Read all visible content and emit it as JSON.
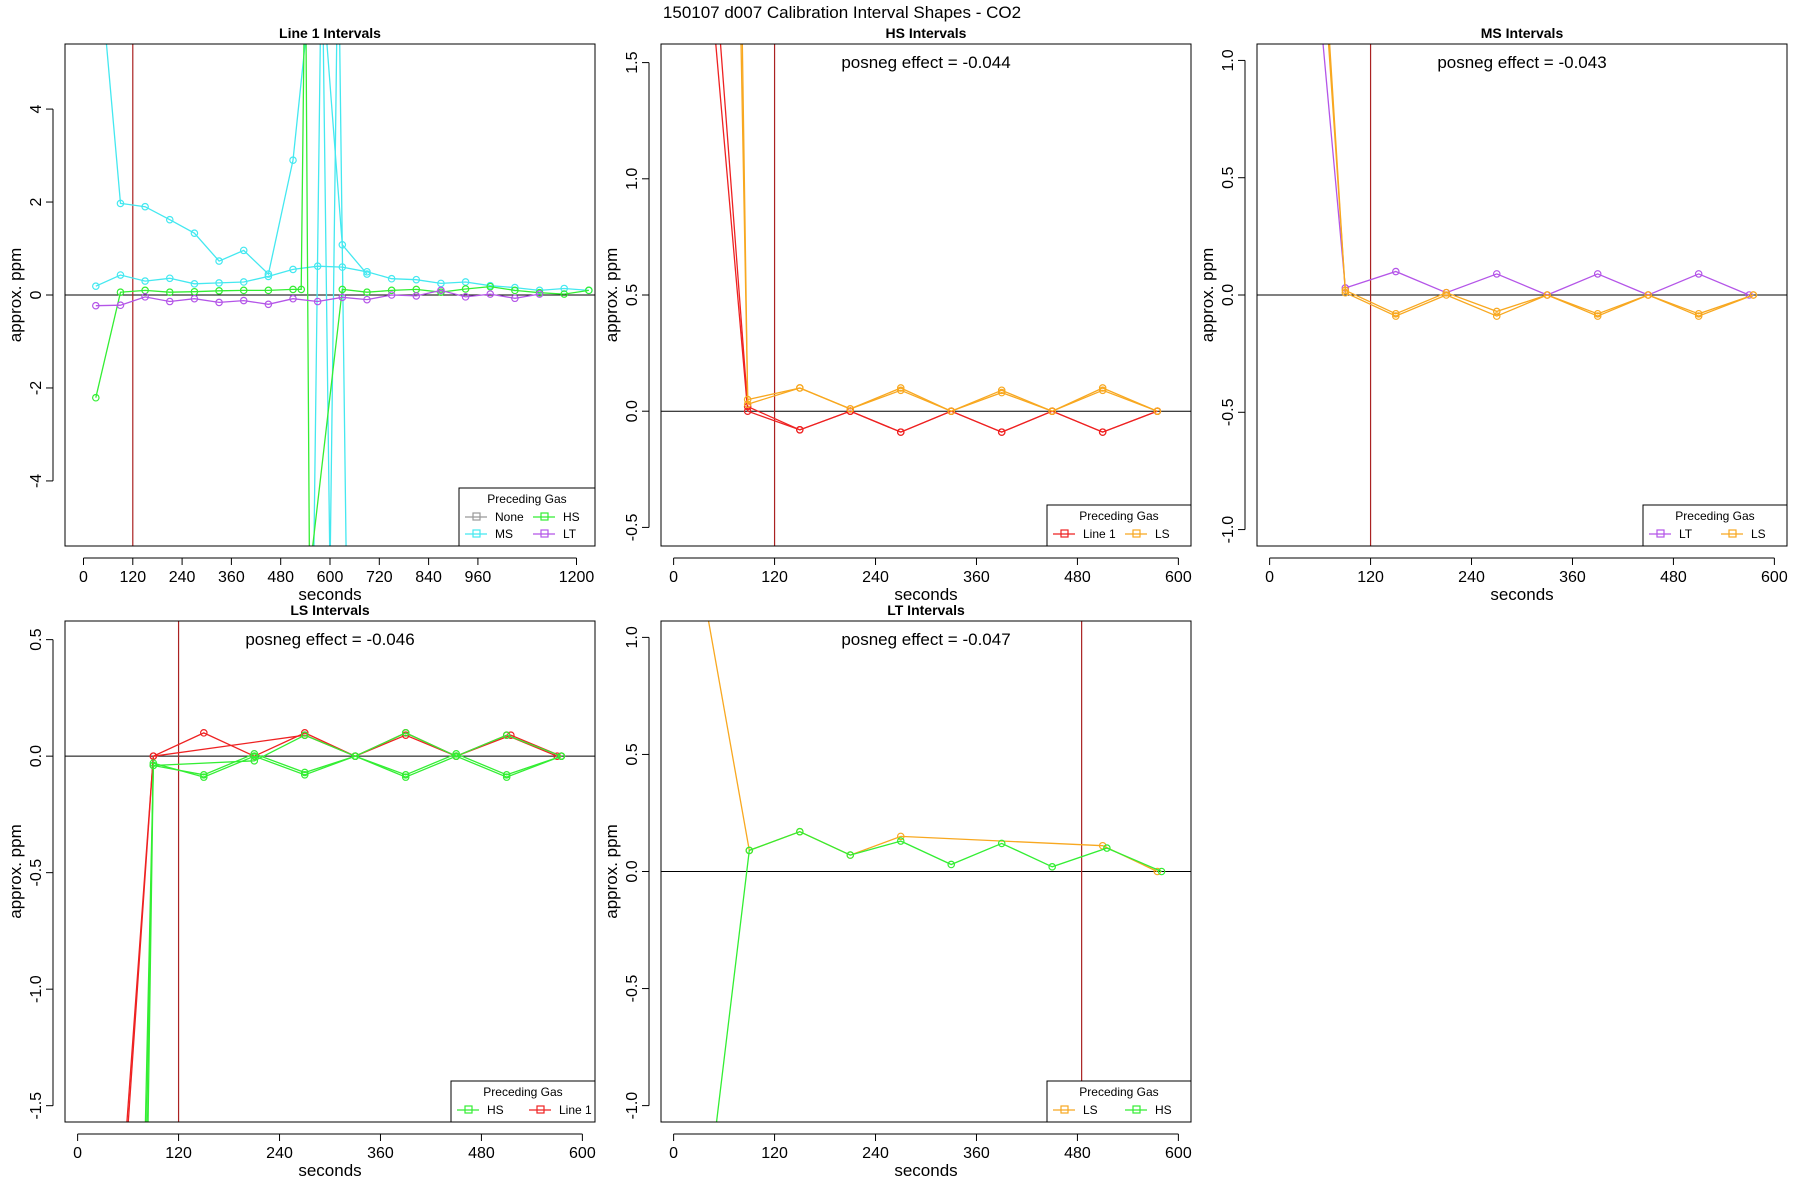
{
  "figure": {
    "title": "150107  d007   Calibration Interval Shapes - CO2"
  },
  "colors": {
    "None": "#999999",
    "HS": "#33ee33",
    "MS": "#44e8f0",
    "LT": "#b455e8",
    "Line 1": "#ee2222",
    "LS": "#f8a820",
    "vline": "#aa2222",
    "zero": "#000000"
  },
  "chart_data": [
    {
      "id": "line1",
      "type": "line",
      "title": "Line 1 Intervals",
      "annotation": "",
      "xlabel": "seconds",
      "ylabel": "approx. ppm",
      "xlim": [
        -45,
        1245
      ],
      "ylim": [
        -5.4,
        5.4
      ],
      "xticks": [
        0,
        120,
        240,
        360,
        480,
        600,
        720,
        840,
        960,
        1200
      ],
      "yticks": [
        -4,
        -2,
        0,
        2,
        4
      ],
      "vlines": [
        120
      ],
      "legend": {
        "title": "Preceding Gas",
        "position": "bottom-right",
        "columns": 2,
        "entries": [
          "None",
          "HS",
          "MS",
          "LT"
        ]
      },
      "series": [
        {
          "name": "MS",
          "x": [
            30,
            90,
            150,
            210,
            270,
            330,
            390,
            450,
            510,
            570,
            630,
            690
          ],
          "y": [
            8,
            1.97,
            1.9,
            1.62,
            1.33,
            0.73,
            0.96,
            0.45,
            2.9,
            8,
            1.08,
            0.45
          ]
        },
        {
          "name": "MS",
          "x": [
            560,
            580,
            600,
            620,
            640
          ],
          "y": [
            -6,
            8,
            -6,
            8,
            -6
          ]
        },
        {
          "name": "MS",
          "x": [
            30,
            90,
            150,
            210,
            270,
            330,
            390,
            450,
            510,
            570,
            630,
            690,
            750,
            810,
            870,
            930,
            990,
            1050,
            1110,
            1170,
            1230
          ],
          "y": [
            0.19,
            0.43,
            0.3,
            0.36,
            0.24,
            0.26,
            0.28,
            0.4,
            0.55,
            0.62,
            0.6,
            0.5,
            0.35,
            0.33,
            0.25,
            0.28,
            0.2,
            0.16,
            0.1,
            0.14,
            0.1
          ]
        },
        {
          "name": "HS",
          "x": [
            30,
            90,
            150,
            210,
            270,
            330,
            390,
            450,
            510,
            530,
            540,
            550,
            630,
            690,
            750,
            810,
            870,
            930,
            990,
            1050,
            1110,
            1170,
            1230
          ],
          "y": [
            -2.21,
            0.06,
            0.1,
            0.06,
            0.07,
            0.09,
            0.1,
            0.1,
            0.12,
            0.12,
            8,
            -6,
            0.12,
            0.06,
            0.1,
            0.12,
            0.06,
            0.13,
            0.18,
            0.1,
            0.05,
            0.02,
            0.1
          ]
        },
        {
          "name": "LT",
          "x": [
            30,
            90,
            150,
            210,
            270,
            330,
            390,
            450,
            510,
            570,
            630,
            690,
            750,
            810,
            870,
            930,
            990,
            1050,
            1110
          ],
          "y": [
            -0.23,
            -0.22,
            -0.04,
            -0.14,
            -0.08,
            -0.16,
            -0.12,
            -0.2,
            -0.08,
            -0.14,
            -0.05,
            -0.1,
            0.0,
            -0.02,
            0.1,
            -0.04,
            0.02,
            -0.07,
            0.02
          ]
        }
      ]
    },
    {
      "id": "hs",
      "type": "line",
      "title": "HS Intervals",
      "annotation": "posneg effect = -0.044",
      "xlabel": "seconds",
      "ylabel": "approx. ppm",
      "xlim": [
        -15,
        615
      ],
      "ylim": [
        -0.58,
        1.58
      ],
      "xticks": [
        0,
        120,
        240,
        360,
        480,
        600
      ],
      "yticks": [
        -0.5,
        0.0,
        0.5,
        1.0,
        1.5
      ],
      "vlines": [
        120
      ],
      "legend": {
        "title": "Preceding Gas",
        "position": "bottom-right",
        "columns": 2,
        "entries": [
          "Line 1",
          "LS"
        ]
      },
      "series": [
        {
          "name": "Line 1",
          "x": [
            40,
            88,
            150,
            210,
            270,
            330,
            390,
            450,
            510,
            575
          ],
          "y": [
            2.0,
            0.0,
            -0.08,
            0.0,
            -0.09,
            0.0,
            -0.09,
            0.0,
            -0.09,
            0.0
          ]
        },
        {
          "name": "Line 1",
          "x": [
            47,
            88,
            150,
            210,
            270,
            330,
            390,
            450,
            510,
            575
          ],
          "y": [
            2.0,
            0.02,
            -0.08,
            0.0,
            -0.09,
            0.0,
            -0.09,
            0.0,
            -0.09,
            0.0
          ]
        },
        {
          "name": "LS",
          "x": [
            78,
            88,
            150,
            210,
            270,
            330,
            390,
            450,
            510,
            575
          ],
          "y": [
            2.0,
            0.05,
            0.1,
            0.01,
            0.09,
            0.0,
            0.08,
            0.0,
            0.09,
            0.0
          ]
        },
        {
          "name": "LS",
          "x": [
            80,
            88,
            150,
            210,
            270,
            330,
            390,
            450,
            510,
            575
          ],
          "y": [
            2.0,
            0.03,
            0.1,
            0.01,
            0.1,
            0.0,
            0.09,
            0.0,
            0.1,
            0.0
          ]
        }
      ]
    },
    {
      "id": "ms",
      "type": "line",
      "title": "MS Intervals",
      "annotation": "posneg effect = -0.043",
      "xlabel": "seconds",
      "ylabel": "approx. ppm",
      "xlim": [
        -15,
        615
      ],
      "ylim": [
        -1.07,
        1.07
      ],
      "xticks": [
        0,
        120,
        240,
        360,
        480,
        600
      ],
      "yticks": [
        -1.0,
        -0.5,
        0.0,
        0.5,
        1.0
      ],
      "vlines": [
        120
      ],
      "legend": {
        "title": "Preceding Gas",
        "position": "bottom-right",
        "columns": 2,
        "entries": [
          "LT",
          "LS"
        ]
      },
      "series": [
        {
          "name": "LT",
          "x": [
            50,
            90,
            150,
            210,
            270,
            330,
            390,
            450,
            510,
            570
          ],
          "y": [
            1.6,
            0.03,
            0.1,
            0.01,
            0.09,
            0.0,
            0.09,
            0.0,
            0.09,
            0.0
          ]
        },
        {
          "name": "LS",
          "x": [
            60,
            90,
            150,
            210,
            270,
            330,
            390,
            450,
            510,
            575
          ],
          "y": [
            1.6,
            0.02,
            -0.08,
            0.01,
            -0.07,
            0.0,
            -0.08,
            0.0,
            -0.08,
            0.0
          ]
        },
        {
          "name": "LS",
          "x": [
            62,
            90,
            150,
            210,
            270,
            330,
            390,
            450,
            510,
            575
          ],
          "y": [
            1.6,
            0.01,
            -0.09,
            0.0,
            -0.09,
            0.0,
            -0.09,
            0.0,
            -0.09,
            0.0
          ]
        }
      ]
    },
    {
      "id": "ls",
      "type": "line",
      "title": "LS Intervals",
      "annotation": "posneg effect = -0.046",
      "xlabel": "seconds",
      "ylabel": "approx. ppm",
      "xlim": [
        -15,
        615
      ],
      "ylim": [
        -1.57,
        0.58
      ],
      "xticks": [
        0,
        120,
        240,
        360,
        480,
        600
      ],
      "yticks": [
        -1.5,
        -1.0,
        -0.5,
        0.0,
        0.5
      ],
      "vlines": [
        120
      ],
      "legend": {
        "title": "Preceding Gas",
        "position": "bottom-right",
        "columns": 2,
        "entries": [
          "HS",
          "Line 1"
        ]
      },
      "series": [
        {
          "name": "Line 1",
          "x": [
            50,
            90,
            150,
            210,
            270,
            330,
            390,
            450,
            510,
            570
          ],
          "y": [
            -2.0,
            0.0,
            0.1,
            0.0,
            0.1,
            0.0,
            0.1,
            0.0,
            0.09,
            0.0
          ]
        },
        {
          "name": "Line 1",
          "x": [
            52,
            90,
            270,
            330,
            390,
            450,
            515,
            575
          ],
          "y": [
            -2.0,
            0.0,
            0.09,
            0.0,
            0.09,
            0.0,
            0.09,
            0.0
          ]
        },
        {
          "name": "HS",
          "x": [
            78,
            90,
            150,
            210,
            270,
            330,
            390,
            450,
            510,
            575
          ],
          "y": [
            -2.0,
            -0.04,
            -0.08,
            0.01,
            -0.07,
            0.0,
            -0.08,
            0.01,
            -0.08,
            0.0
          ]
        },
        {
          "name": "HS",
          "x": [
            80,
            90,
            150,
            210,
            270,
            330,
            390,
            450,
            510,
            575
          ],
          "y": [
            -2.0,
            -0.03,
            -0.09,
            0.0,
            -0.08,
            0.0,
            -0.09,
            0.0,
            -0.09,
            0.0
          ]
        },
        {
          "name": "HS",
          "x": [
            82,
            90,
            210,
            270,
            330,
            390,
            450,
            510,
            575
          ],
          "y": [
            -2.0,
            -0.04,
            -0.02,
            0.09,
            0.0,
            0.1,
            0.0,
            0.09,
            0.0
          ]
        }
      ]
    },
    {
      "id": "lt",
      "type": "line",
      "title": "LT Intervals",
      "annotation": "posneg effect = -0.047",
      "xlabel": "seconds",
      "ylabel": "approx. ppm",
      "xlim": [
        -15,
        615
      ],
      "ylim": [
        -1.07,
        1.07
      ],
      "xticks": [
        0,
        120,
        240,
        360,
        480,
        600
      ],
      "yticks": [
        -1.0,
        -0.5,
        0.0,
        0.5,
        1.0
      ],
      "vlines": [
        485
      ],
      "legend": {
        "title": "Preceding Gas",
        "position": "bottom-right",
        "columns": 2,
        "entries": [
          "LS",
          "HS"
        ]
      },
      "series": [
        {
          "name": "LS",
          "x": [
            40,
            90,
            150,
            210,
            270,
            510,
            575
          ],
          "y": [
            1.1,
            0.09,
            0.17,
            0.07,
            0.15,
            0.11,
            0.0
          ]
        },
        {
          "name": "HS",
          "x": [
            50,
            90,
            150,
            210,
            270,
            330,
            390,
            450,
            515,
            580
          ],
          "y": [
            -1.1,
            0.09,
            0.17,
            0.07,
            0.13,
            0.03,
            0.12,
            0.02,
            0.1,
            0.0
          ]
        }
      ]
    }
  ]
}
